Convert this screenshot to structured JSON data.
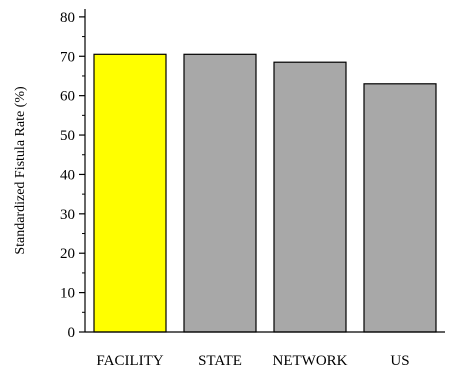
{
  "chart_data": {
    "type": "bar",
    "title": "",
    "xlabel": "",
    "ylabel": "Standardized Fistula Rate (%)",
    "categories": [
      "FACILITY",
      "STATE",
      "NETWORK",
      "US"
    ],
    "values": [
      70.5,
      70.5,
      68.5,
      63
    ],
    "ylim": [
      0,
      82
    ],
    "yticks": [
      0,
      10,
      20,
      30,
      40,
      50,
      60,
      70,
      80
    ],
    "grid": false,
    "legend": "none",
    "bar_colors": [
      "#ffff00",
      "#a8a8a8",
      "#a8a8a8",
      "#a8a8a8"
    ],
    "bar_outline": "#000000"
  }
}
